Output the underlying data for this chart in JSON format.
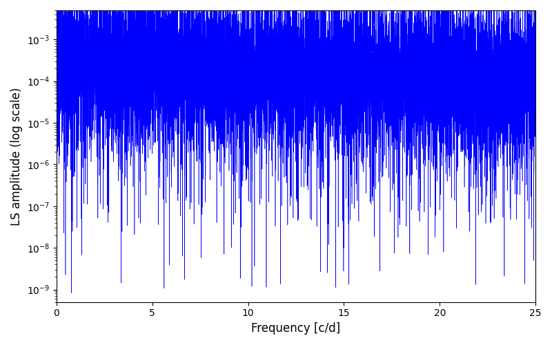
{
  "title": "",
  "xlabel": "Frequency [c/d]",
  "ylabel": "LS amplitude (log scale)",
  "xlim": [
    0,
    25
  ],
  "ylim": [
    5e-10,
    0.005
  ],
  "line_color": "#0000ff",
  "line_width": 0.4,
  "background_color": "#ffffff",
  "freq_min": 0.0,
  "freq_max": 25.0,
  "n_points": 12000,
  "seed": 7,
  "yscale": "log",
  "yticks": [
    1e-09,
    1e-08,
    1e-07,
    1e-06,
    1e-05,
    0.0001,
    0.001
  ],
  "xticks": [
    0,
    5,
    10,
    15,
    20,
    25
  ],
  "figsize": [
    8.0,
    5.0
  ],
  "dpi": 100
}
